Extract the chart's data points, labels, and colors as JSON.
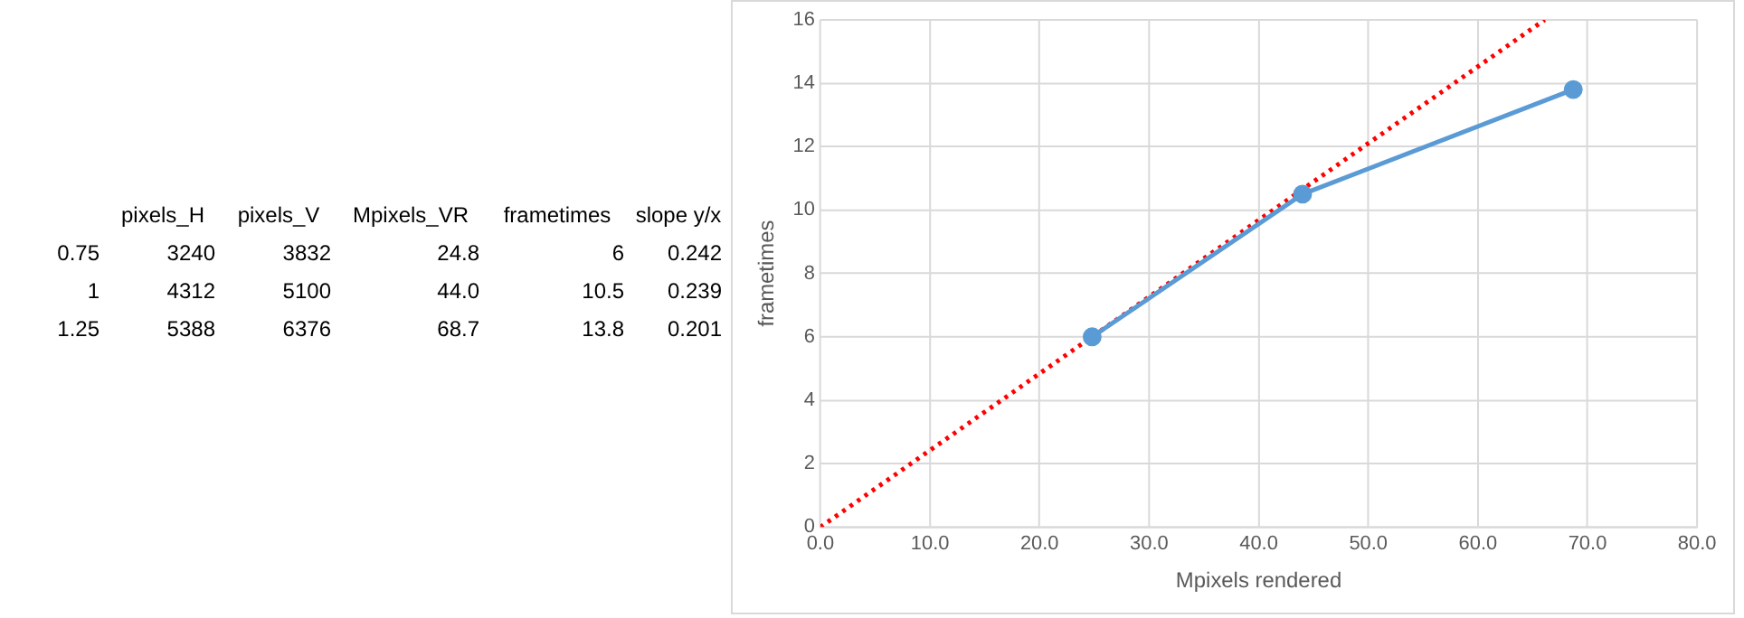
{
  "chart_data": [
    {
      "type": "other",
      "categories": [
        null,
        "pixels_H",
        "pixels_V",
        "Mpixels_VR",
        "frametimes",
        "slope y/x"
      ],
      "y_categories": [
        "0.75",
        "1",
        "1.25"
      ],
      "cell_labels": [
        [
          "3240",
          "3832",
          "24.8",
          "6",
          "0.242"
        ],
        [
          "4312",
          "5100",
          "44.0",
          "10.5",
          "0.239"
        ],
        [
          "5388",
          "6376",
          "68.7",
          "13.8",
          "0.201"
        ]
      ]
    },
    {
      "type": "scatter",
      "xlabel": "Mpixels rendered",
      "ylabel": "frametimes",
      "xlim": [
        0,
        80
      ],
      "xticks": [
        {
          "value": 0,
          "label": "0.0"
        },
        {
          "value": 10,
          "label": "10.0"
        },
        {
          "value": 20,
          "label": "20.0"
        },
        {
          "value": 30,
          "label": "30.0"
        },
        {
          "value": 40,
          "label": "40.0"
        },
        {
          "value": 50,
          "label": "50.0"
        },
        {
          "value": 60,
          "label": "60.0"
        },
        {
          "value": 70,
          "label": "70.0"
        },
        {
          "value": 80,
          "label": "80.0"
        }
      ],
      "ylim": [
        0,
        16
      ],
      "yticks": [
        0,
        2,
        4,
        6,
        8,
        10,
        12,
        14,
        16
      ],
      "grid": true,
      "series": [
        {
          "type": "line",
          "color": "#5b9bd5",
          "x": [
            24.8,
            44.0,
            68.7
          ],
          "values": [
            6,
            10.5,
            13.8
          ],
          "marker": "circle",
          "line_style": "solid"
        },
        {
          "type": "line",
          "color": "#ff0000",
          "x": [
            0,
            66.1
          ],
          "values": [
            0,
            16
          ],
          "marker": "none",
          "line_style": "dotted"
        }
      ]
    }
  ]
}
